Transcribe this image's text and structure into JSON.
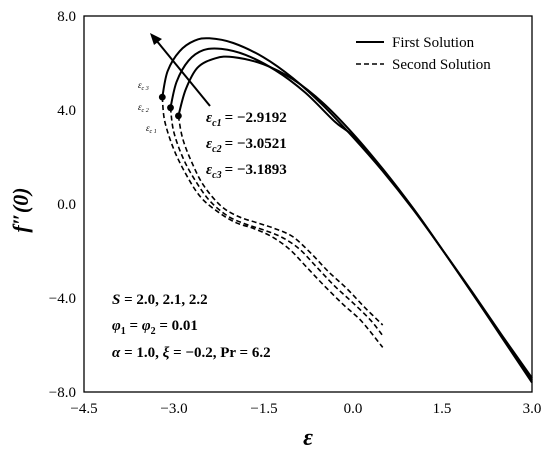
{
  "chart_data": {
    "type": "line",
    "xlabel": "ε",
    "ylabel": "f″(0)",
    "xlim": [
      -4.5,
      3.0
    ],
    "ylim": [
      -8.0,
      8.0
    ],
    "x_ticks": [
      "−4.5",
      "−3.0",
      "−1.5",
      "0.0",
      "1.5",
      "3.0"
    ],
    "y_ticks": [
      "8.0",
      "4.0",
      "0.0",
      "−4.0",
      "−8.0"
    ],
    "legend": {
      "position": "top-right",
      "entries": [
        "First Solution",
        "Second Solution"
      ]
    },
    "series": [
      {
        "name": "First Solution",
        "style": "solid",
        "case": "S = 2.0",
        "x": [
          -2.9192,
          -2.8,
          -2.6,
          -2.3,
          -2.0,
          -1.5,
          -1.0,
          -0.5,
          0.0,
          0.5,
          1.0,
          1.5,
          2.0,
          2.5,
          3.0
        ],
        "y": [
          3.75,
          4.85,
          5.8,
          6.2,
          6.25,
          5.95,
          5.3,
          4.3,
          3.0,
          1.5,
          -0.15,
          -1.95,
          -3.8,
          -5.7,
          -7.6
        ]
      },
      {
        "name": "First Solution",
        "style": "solid",
        "case": "S = 2.1",
        "x": [
          -3.0521,
          -2.95,
          -2.75,
          -2.5,
          -2.2,
          -1.8,
          -1.3,
          -0.8,
          -0.3,
          0.0,
          0.5,
          1.0,
          1.5,
          2.0,
          2.5,
          3.0
        ],
        "y": [
          4.1,
          5.2,
          6.1,
          6.55,
          6.6,
          6.35,
          5.7,
          4.75,
          3.5,
          2.9,
          1.45,
          -0.15,
          -1.95,
          -3.8,
          -5.65,
          -7.5
        ]
      },
      {
        "name": "First Solution",
        "style": "solid",
        "case": "S = 2.2",
        "x": [
          -3.1893,
          -3.1,
          -2.9,
          -2.65,
          -2.4,
          -2.0,
          -1.5,
          -1.0,
          -0.5,
          0.0,
          0.5,
          1.0,
          1.5,
          2.0,
          2.5,
          3.0
        ],
        "y": [
          4.55,
          5.65,
          6.5,
          6.95,
          7.05,
          6.85,
          6.25,
          5.35,
          4.2,
          2.85,
          1.4,
          -0.2,
          -1.95,
          -3.75,
          -5.6,
          -7.4
        ]
      },
      {
        "name": "Second Solution",
        "style": "dashed",
        "case": "S = 2.0",
        "x": [
          -2.9192,
          -2.85,
          -2.7,
          -2.5,
          -2.2,
          -1.9,
          -1.6,
          -1.3,
          -1.0,
          -0.7,
          -0.4,
          -0.1,
          0.2,
          0.5
        ],
        "y": [
          3.75,
          2.8,
          1.8,
          0.8,
          -0.1,
          -0.55,
          -0.8,
          -1.05,
          -1.4,
          -2.1,
          -2.9,
          -3.6,
          -4.4,
          -5.15
        ]
      },
      {
        "name": "Second Solution",
        "style": "dashed",
        "case": "S = 2.1",
        "x": [
          -3.0521,
          -3.0,
          -2.85,
          -2.65,
          -2.4,
          -2.1,
          -1.8,
          -1.5,
          -1.2,
          -0.9,
          -0.6,
          -0.3,
          0.0,
          0.3,
          0.5
        ],
        "y": [
          4.1,
          3.1,
          2.0,
          1.05,
          0.15,
          -0.5,
          -0.85,
          -1.1,
          -1.4,
          -1.9,
          -2.7,
          -3.5,
          -4.2,
          -4.95,
          -5.6
        ]
      },
      {
        "name": "Second Solution",
        "style": "dashed",
        "case": "S = 2.2",
        "x": [
          -3.1893,
          -3.15,
          -3.0,
          -2.8,
          -2.55,
          -2.25,
          -1.95,
          -1.65,
          -1.35,
          -1.05,
          -0.75,
          -0.45,
          -0.15,
          0.15,
          0.5
        ],
        "y": [
          4.55,
          3.55,
          2.35,
          1.3,
          0.3,
          -0.35,
          -0.8,
          -1.05,
          -1.4,
          -1.95,
          -2.75,
          -3.55,
          -4.3,
          -5.0,
          -6.1
        ]
      }
    ],
    "critical_points": [
      {
        "label": "ε_c1",
        "x": -2.9192,
        "y": 3.75
      },
      {
        "label": "ε_c2",
        "x": -3.0521,
        "y": 4.1
      },
      {
        "label": "ε_c3",
        "x": -3.1893,
        "y": 4.55
      }
    ]
  },
  "annotations": {
    "critical_values": [
      {
        "symbol": "ε",
        "sub": "c1",
        "value": "= −2.9192"
      },
      {
        "symbol": "ε",
        "sub": "c2",
        "value": "= −3.0521"
      },
      {
        "symbol": "ε",
        "sub": "c3",
        "value": "= −3.1893"
      }
    ],
    "point_labels": [
      "ε",
      "ε",
      "ε"
    ],
    "point_label_subs": [
      "c 3",
      "c 2",
      "c 1"
    ],
    "params": {
      "S_sym": "S",
      "S_val": " = 2.0, 2.1, 2.2",
      "phi1": "φ",
      "phi1_sub": "1",
      "phi_eq": " = ",
      "phi2": "φ",
      "phi2_sub": "2",
      "phi_val": " = 0.01",
      "alpha_sym": "α",
      "alpha_val": " = 1.0, ",
      "xi_sym": "ξ",
      "xi_val": " = −0.2, ",
      "pr_sym": "Pr",
      "pr_val": " = 6.2"
    }
  }
}
